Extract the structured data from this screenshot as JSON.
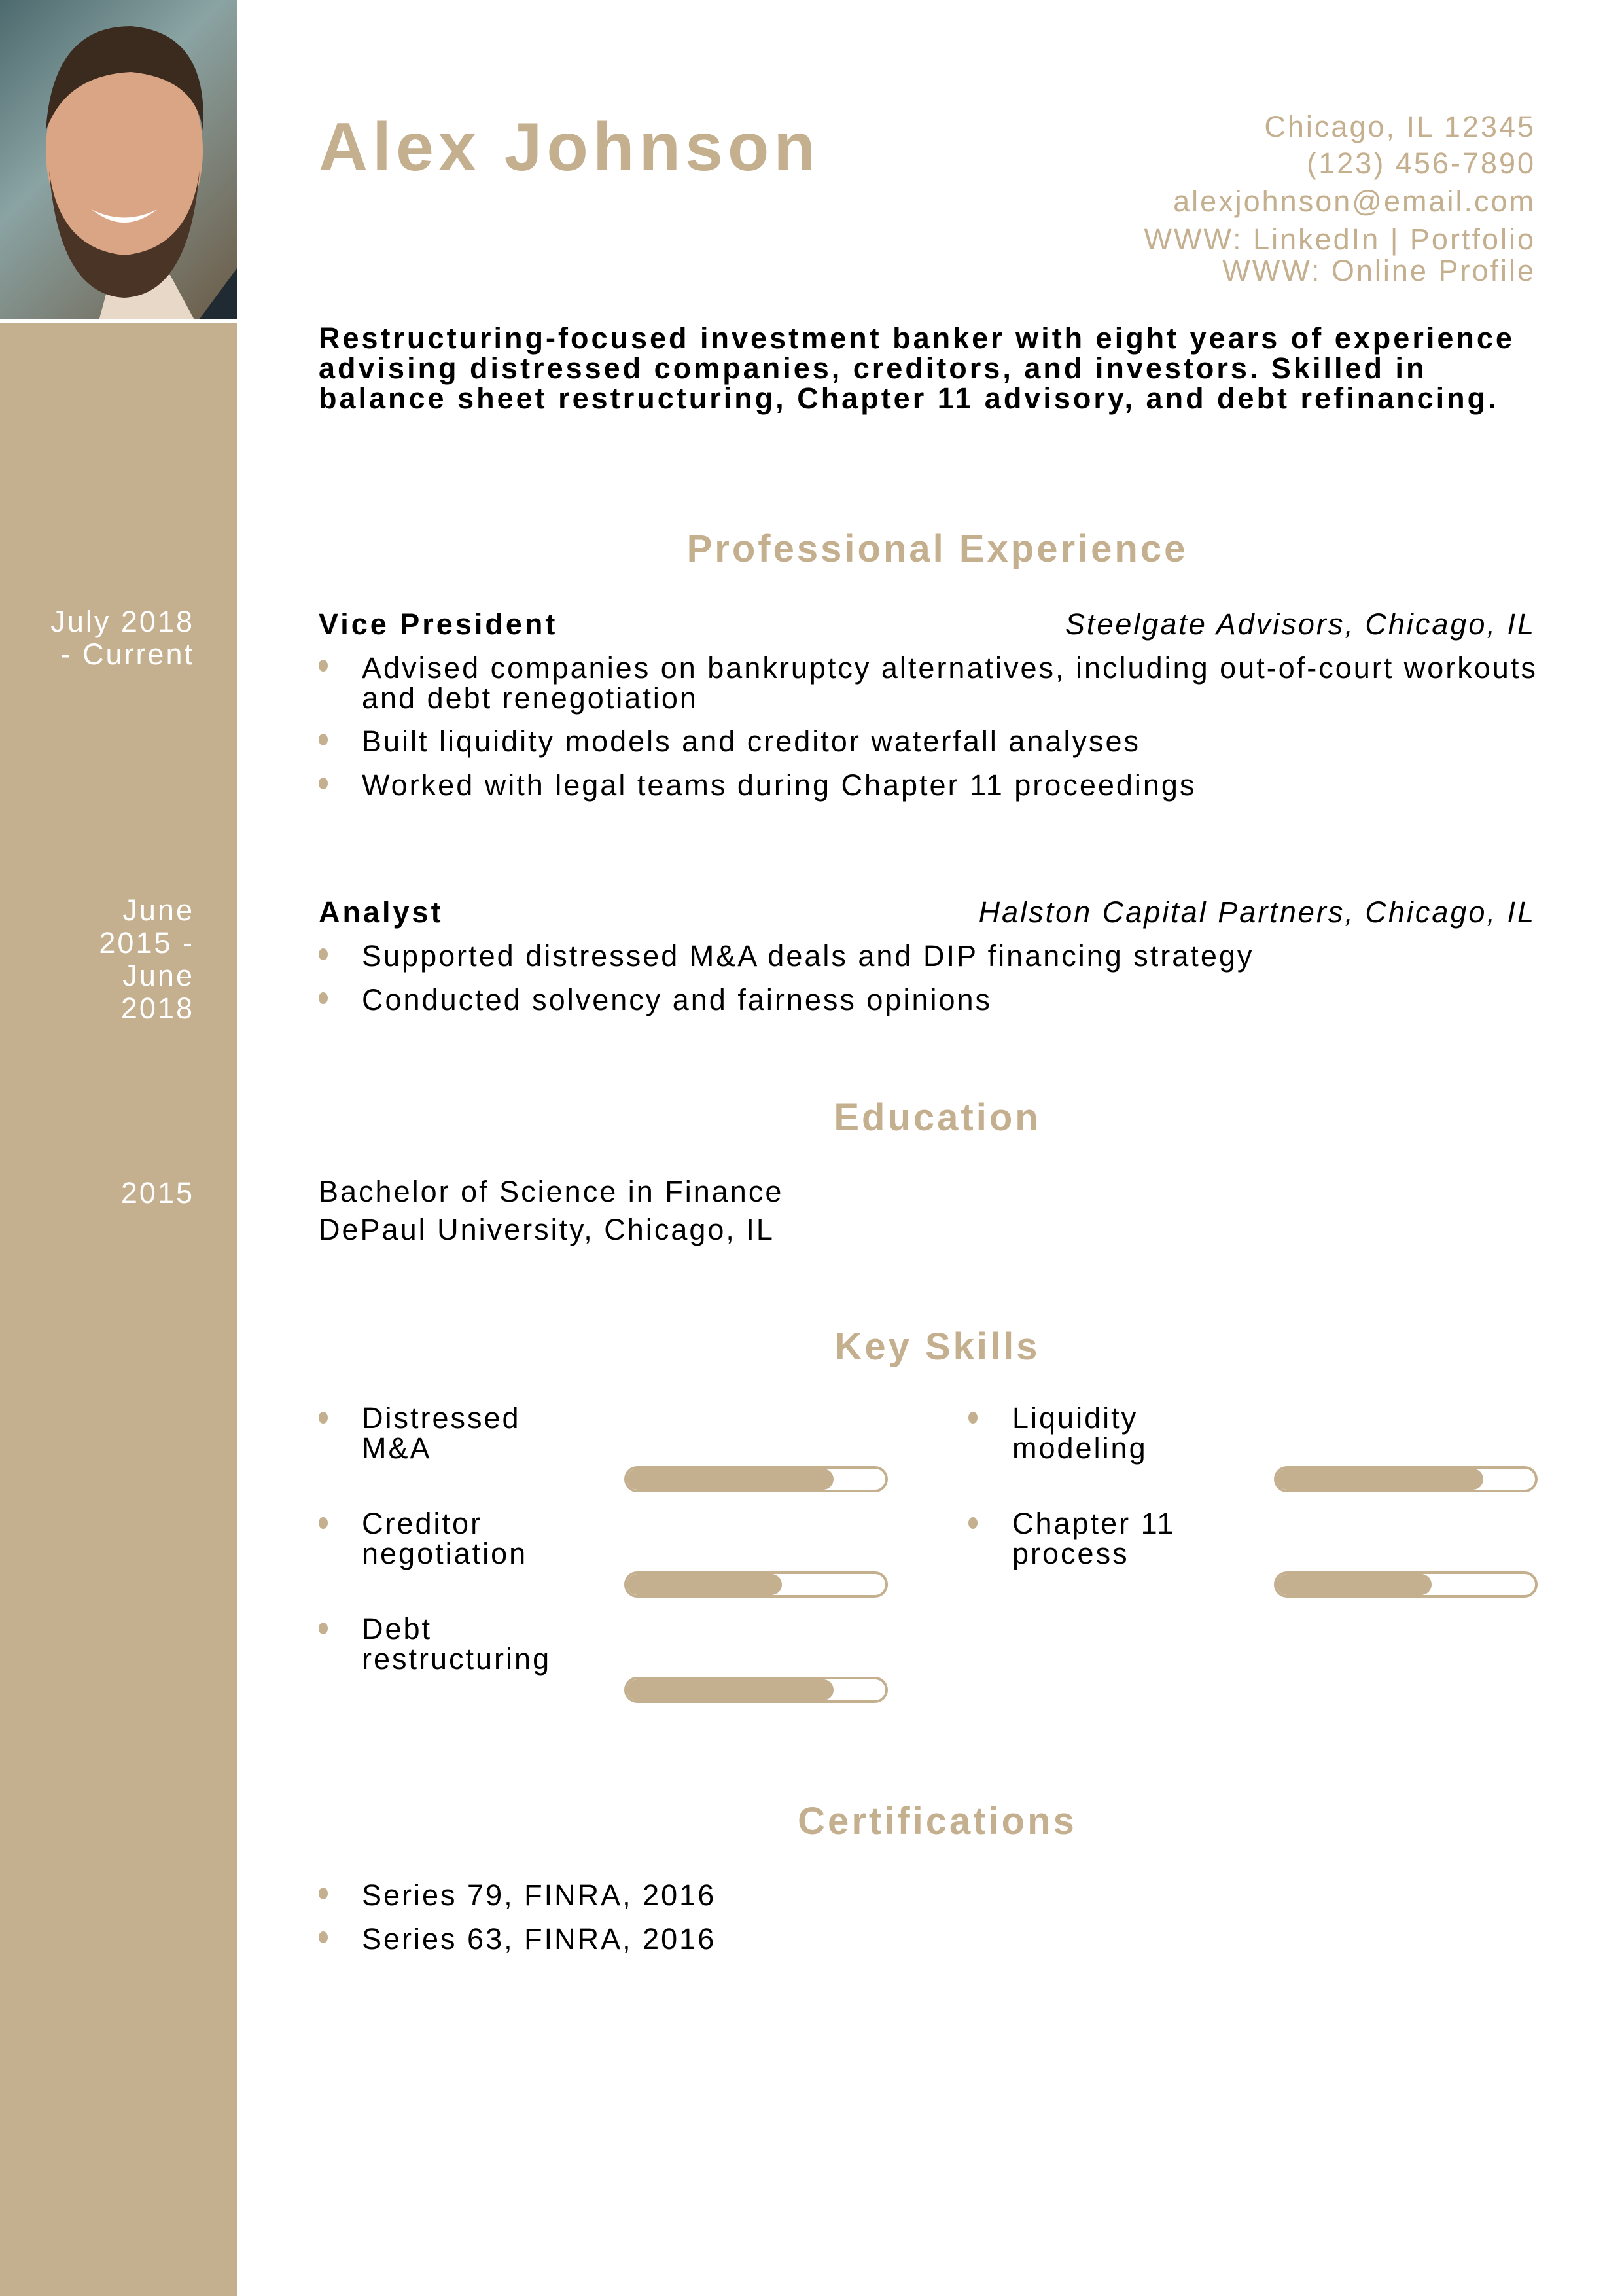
{
  "header": {
    "name": "Alex Johnson",
    "contact": [
      "Chicago, IL 12345",
      "(123) 456-7890",
      "alexjohnson@email.com",
      "WWW: LinkedIn | Portfolio",
      "WWW: Online Profile"
    ]
  },
  "summary": "Restructuring-focused investment banker with eight years of experience advising distressed companies, creditors, and investors. Skilled in balance sheet restructuring, Chapter 11 advisory, and debt refinancing.",
  "experience": {
    "heading": "Professional Experience",
    "jobs": [
      {
        "dates": [
          "July 2018",
          "- Current"
        ],
        "title": "Vice President",
        "company": "Steelgate Advisors, Chicago, IL",
        "bullets": [
          "Advised companies on bankruptcy alternatives, including out-of-court workouts and debt renegotiation",
          "Built liquidity models and creditor waterfall analyses",
          "Worked with legal teams during Chapter 11 proceedings"
        ]
      },
      {
        "dates": [
          "June",
          "2015 -",
          "June",
          "2018"
        ],
        "title": "Analyst",
        "company": "Halston Capital Partners, Chicago, IL",
        "bullets": [
          "Supported distressed M&A deals and DIP financing strategy",
          "Conducted solvency and fairness opinions"
        ]
      }
    ]
  },
  "education": {
    "heading": "Education",
    "year": "2015",
    "degree": "Bachelor of Science in Finance",
    "school": "DePaul University, Chicago, IL"
  },
  "skills": {
    "heading": "Key Skills",
    "items": [
      {
        "label": [
          "Distressed",
          "M&A"
        ],
        "level_percent": 80
      },
      {
        "label": [
          "Liquidity",
          "modeling"
        ],
        "level_percent": 80
      },
      {
        "label": [
          "Creditor",
          "negotiation"
        ],
        "level_percent": 60
      },
      {
        "label": [
          "Chapter 11",
          "process"
        ],
        "level_percent": 60
      },
      {
        "label": [
          "Debt",
          "restructuring"
        ],
        "level_percent": 80
      }
    ]
  },
  "certifications": {
    "heading": "Certifications",
    "items": [
      "Series 79, FINRA, 2016",
      "Series 63, FINRA, 2016"
    ]
  },
  "colors": {
    "accent": "#c4af8f",
    "text": "#000000"
  }
}
